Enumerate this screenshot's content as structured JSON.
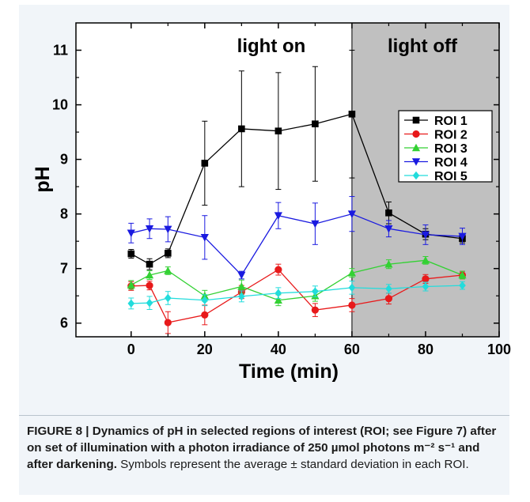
{
  "chart_data": {
    "type": "line",
    "xlabel": "Time (min)",
    "ylabel": "pH",
    "xlim": [
      -15,
      100
    ],
    "ylim": [
      5.75,
      11.5
    ],
    "xticks": [
      0,
      20,
      40,
      60,
      80,
      100
    ],
    "yticks": [
      6,
      7,
      8,
      9,
      10,
      11
    ],
    "grid": false,
    "legend_position": "right",
    "shaded_region": {
      "x_start": 60,
      "x_end": 100,
      "color": "#c0c0c0"
    },
    "annotations": [
      {
        "text": "light on"
      },
      {
        "text": "light off"
      }
    ],
    "x": [
      0,
      5,
      10,
      20,
      30,
      40,
      50,
      60,
      70,
      80,
      90
    ],
    "series": [
      {
        "name": "ROI 1",
        "color": "#000000",
        "marker": "square",
        "values": [
          7.27,
          7.08,
          7.28,
          8.93,
          9.56,
          9.52,
          9.65,
          9.83,
          8.02,
          7.63,
          7.55
        ],
        "errors": [
          0.08,
          0.1,
          0.08,
          0.77,
          1.06,
          1.07,
          1.05,
          1.17,
          0.2,
          0.1,
          0.08
        ]
      },
      {
        "name": "ROI 2",
        "color": "#e8191a",
        "marker": "circle",
        "values": [
          6.68,
          6.69,
          6.01,
          6.15,
          6.57,
          6.98,
          6.24,
          6.33,
          6.45,
          6.81,
          6.88
        ],
        "errors": [
          0.08,
          0.08,
          0.2,
          0.18,
          0.12,
          0.1,
          0.12,
          0.12,
          0.1,
          0.08,
          0.07
        ]
      },
      {
        "name": "ROI 3",
        "color": "#33d133",
        "marker": "triangle-up",
        "values": [
          6.7,
          6.88,
          6.96,
          6.5,
          6.67,
          6.42,
          6.5,
          6.92,
          7.08,
          7.15,
          6.88
        ],
        "errors": [
          0.08,
          0.08,
          0.07,
          0.1,
          0.12,
          0.1,
          0.1,
          0.08,
          0.08,
          0.07,
          0.07
        ]
      },
      {
        "name": "ROI 4",
        "color": "#1a1ae0",
        "marker": "triangle-down",
        "values": [
          7.65,
          7.73,
          7.72,
          7.57,
          6.88,
          7.97,
          7.82,
          8.0,
          7.73,
          7.62,
          7.59
        ],
        "errors": [
          0.18,
          0.18,
          0.23,
          0.4,
          0.07,
          0.24,
          0.38,
          0.32,
          0.15,
          0.18,
          0.15
        ]
      },
      {
        "name": "ROI 5",
        "color": "#22dcdc",
        "marker": "diamond",
        "values": [
          6.36,
          6.37,
          6.46,
          6.42,
          6.49,
          6.55,
          6.58,
          6.65,
          6.63,
          6.67,
          6.69
        ],
        "errors": [
          0.1,
          0.12,
          0.12,
          0.1,
          0.1,
          0.1,
          0.1,
          0.12,
          0.08,
          0.08,
          0.07
        ]
      }
    ]
  },
  "caption": {
    "bold_text": "FIGURE 8 | Dynamics of pH in selected regions of interest (ROI; see Figure 7) after on set of illumination with a photon irradiance of 250 µmol photons m⁻² s⁻¹ and after darkening.",
    "normal_text": " Symbols represent the average ± standard deviation in each ROI."
  }
}
